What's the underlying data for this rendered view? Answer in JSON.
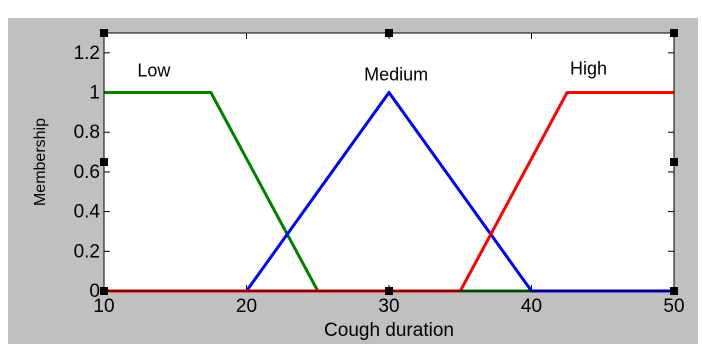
{
  "chart_data": {
    "type": "line",
    "title": "",
    "xlabel": "Cough duration",
    "ylabel": "Membership",
    "xlim": [
      10,
      50
    ],
    "ylim": [
      0,
      1.3
    ],
    "x_ticks": [
      10,
      20,
      30,
      40,
      50
    ],
    "y_ticks": [
      0,
      0.2,
      0.4,
      0.6,
      0.8,
      1,
      1.2
    ],
    "x_tick_labels": [
      "10",
      "20",
      "30",
      "40",
      "50"
    ],
    "y_tick_labels": [
      "0",
      "0.2",
      "0.4",
      "0.6",
      "0.8",
      "1",
      "1.2"
    ],
    "grid": false,
    "legend": "none",
    "series": [
      {
        "name": "Low",
        "color": "#008000",
        "x": [
          10,
          17.5,
          25,
          50
        ],
        "y": [
          1,
          1,
          0,
          0
        ]
      },
      {
        "name": "Medium",
        "color": "#0000ff",
        "x": [
          10,
          20,
          30,
          40,
          50
        ],
        "y": [
          0,
          0,
          1,
          0,
          0
        ]
      },
      {
        "name": "High",
        "color": "#ff0000",
        "x": [
          10,
          35,
          42.5,
          50
        ],
        "y": [
          0,
          0,
          1,
          1
        ]
      }
    ],
    "label_anchors": [
      {
        "series": "Low",
        "x": 13.5,
        "y": 1.08
      },
      {
        "series": "Medium",
        "x": 30.5,
        "y": 1.06
      },
      {
        "series": "High",
        "x": 44,
        "y": 1.09
      }
    ]
  },
  "colors": {
    "panel_background": "#c0c0c0",
    "plot_background": "#ffffff",
    "axis_color": "#000000"
  }
}
